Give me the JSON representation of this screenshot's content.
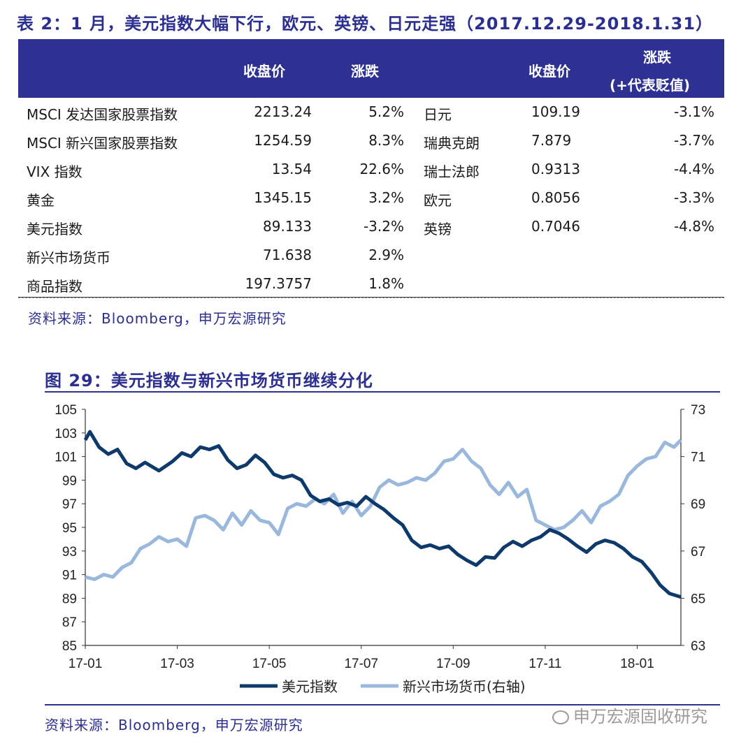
{
  "table": {
    "title": "表 2：1 月，美元指数大幅下行，欧元、英镑、日元走强（2017.12.29-2018.1.31）",
    "headers": {
      "close1": "收盘价",
      "chg1": "涨跌",
      "close2": "收盘价",
      "chg2_line1": "涨跌",
      "chg2_line2": "(+代表贬值)"
    },
    "left_rows": [
      {
        "name": "MSCI 发达国家股票指数",
        "close": "2213.24",
        "chg": "5.2%"
      },
      {
        "name": "MSCI 新兴国家股票指数",
        "close": "1254.59",
        "chg": "8.3%"
      },
      {
        "name": "VIX 指数",
        "close": "13.54",
        "chg": "22.6%"
      },
      {
        "name": "黄金",
        "close": "1345.15",
        "chg": "3.2%"
      },
      {
        "name": "美元指数",
        "close": "89.133",
        "chg": "-3.2%"
      },
      {
        "name": "新兴市场货币",
        "close": "71.638",
        "chg": "2.9%"
      },
      {
        "name": "商品指数",
        "close": "197.3757",
        "chg": "1.8%"
      }
    ],
    "right_rows": [
      {
        "name": "日元",
        "close": "109.19",
        "chg": "-3.1%"
      },
      {
        "name": "瑞典克朗",
        "close": "7.879",
        "chg": "-3.7%"
      },
      {
        "name": "瑞士法郎",
        "close": "0.9313",
        "chg": "-4.4%"
      },
      {
        "name": "欧元",
        "close": "0.8056",
        "chg": "-3.3%"
      },
      {
        "name": "英镑",
        "close": "0.7046",
        "chg": "-4.8%"
      }
    ],
    "source": "资料来源：Bloomberg，申万宏源研究"
  },
  "chart_title": "图 29：美元指数与新兴市场货币继续分化",
  "chart_source": "资料来源：Bloomberg，申万宏源研究",
  "watermark": "申万宏源固收研究",
  "colors": {
    "dark_series": "#0d3a6a",
    "light_series": "#9ab8dc",
    "header_bg": "#2e3192"
  },
  "chart_data": {
    "type": "line",
    "title": "图 29：美元指数与新兴市场货币继续分化",
    "x_ticks": [
      "17-01",
      "17-03",
      "17-05",
      "17-07",
      "17-09",
      "17-11",
      "18-01"
    ],
    "x_tick_months": [
      0,
      2,
      4,
      6,
      8,
      10,
      12
    ],
    "x_range": [
      0,
      12.95
    ],
    "y_left": {
      "range": [
        85,
        105
      ],
      "ticks": [
        85,
        87,
        89,
        91,
        93,
        95,
        97,
        99,
        101,
        103,
        105
      ]
    },
    "y_right": {
      "range": [
        63,
        73
      ],
      "ticks": [
        63,
        65,
        67,
        69,
        71,
        73
      ]
    },
    "legend_position": "bottom-center",
    "series": [
      {
        "name": "美元指数",
        "axis": "left",
        "x": [
          0,
          0.1,
          0.3,
          0.5,
          0.7,
          0.9,
          1.1,
          1.3,
          1.6,
          1.9,
          2.1,
          2.3,
          2.5,
          2.7,
          2.9,
          3.1,
          3.3,
          3.5,
          3.7,
          3.9,
          4.1,
          4.3,
          4.5,
          4.7,
          4.9,
          5.1,
          5.3,
          5.5,
          5.7,
          5.9,
          6.1,
          6.3,
          6.5,
          6.7,
          6.9,
          7.1,
          7.3,
          7.5,
          7.7,
          7.9,
          8.1,
          8.3,
          8.5,
          8.7,
          8.9,
          9.1,
          9.3,
          9.5,
          9.7,
          9.9,
          10.1,
          10.3,
          10.5,
          10.7,
          10.9,
          11.1,
          11.3,
          11.5,
          11.7,
          11.9,
          12.1,
          12.3,
          12.5,
          12.7,
          12.95
        ],
        "values": [
          102.4,
          103.1,
          101.8,
          101.2,
          101.6,
          100.4,
          100.0,
          100.5,
          99.8,
          100.6,
          101.3,
          101.0,
          101.8,
          101.6,
          101.9,
          100.7,
          100.0,
          100.3,
          101.1,
          100.5,
          99.5,
          99.2,
          99.4,
          99.0,
          97.7,
          97.2,
          97.4,
          96.9,
          97.1,
          96.8,
          97.6,
          97.0,
          96.5,
          95.8,
          95.2,
          93.9,
          93.3,
          93.5,
          93.2,
          93.4,
          92.7,
          92.2,
          91.8,
          92.5,
          92.4,
          93.3,
          93.8,
          93.4,
          93.9,
          94.2,
          94.8,
          94.5,
          94.0,
          93.4,
          92.9,
          93.6,
          93.9,
          93.7,
          93.2,
          92.5,
          92.1,
          91.2,
          90.1,
          89.4,
          89.1
        ]
      },
      {
        "name": "新兴市场货币(右轴)",
        "axis": "right",
        "x": [
          0,
          0.2,
          0.4,
          0.6,
          0.8,
          1.0,
          1.2,
          1.4,
          1.6,
          1.8,
          2.0,
          2.2,
          2.4,
          2.6,
          2.8,
          3.0,
          3.2,
          3.4,
          3.6,
          3.8,
          4.0,
          4.2,
          4.4,
          4.6,
          4.8,
          5.0,
          5.2,
          5.4,
          5.6,
          5.8,
          6.0,
          6.2,
          6.4,
          6.6,
          6.8,
          7.0,
          7.2,
          7.4,
          7.6,
          7.8,
          8.0,
          8.2,
          8.4,
          8.6,
          8.8,
          9.0,
          9.2,
          9.4,
          9.6,
          9.8,
          10.0,
          10.2,
          10.4,
          10.6,
          10.8,
          11.0,
          11.2,
          11.4,
          11.6,
          11.8,
          12.0,
          12.2,
          12.4,
          12.6,
          12.8,
          12.95
        ],
        "values": [
          65.9,
          65.8,
          66.0,
          65.9,
          66.3,
          66.5,
          67.1,
          67.3,
          67.6,
          67.4,
          67.5,
          67.2,
          68.4,
          68.5,
          68.3,
          67.9,
          68.6,
          68.1,
          68.7,
          68.3,
          68.2,
          67.7,
          68.8,
          69.0,
          68.9,
          69.2,
          69.0,
          69.4,
          68.6,
          69.1,
          68.5,
          68.9,
          69.7,
          70.0,
          69.8,
          69.9,
          70.1,
          70.0,
          70.3,
          70.8,
          70.9,
          71.3,
          70.8,
          70.5,
          69.8,
          69.4,
          69.9,
          69.3,
          69.6,
          68.3,
          68.1,
          67.9,
          68.0,
          68.3,
          68.7,
          68.2,
          68.9,
          69.1,
          69.4,
          70.2,
          70.6,
          70.9,
          71.0,
          71.6,
          71.4,
          71.7
        ]
      }
    ]
  }
}
